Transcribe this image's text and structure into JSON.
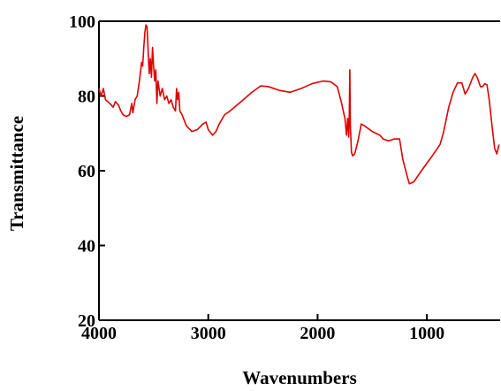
{
  "chart_data": {
    "type": "line",
    "x_label": "Wavenumbers",
    "y_label": "Transmittance",
    "color": "#e00000",
    "xlim": [
      4000,
      330
    ],
    "ylim": [
      20,
      100
    ],
    "xticks": [
      4000,
      3000,
      2000,
      1000
    ],
    "yticks": [
      20,
      40,
      60,
      80,
      100
    ],
    "x": [
      4000,
      3980,
      3960,
      3940,
      3900,
      3870,
      3850,
      3820,
      3800,
      3780,
      3750,
      3720,
      3700,
      3690,
      3670,
      3650,
      3630,
      3610,
      3600,
      3590,
      3580,
      3570,
      3560,
      3550,
      3540,
      3530,
      3520,
      3510,
      3500,
      3490,
      3480,
      3470,
      3460,
      3440,
      3420,
      3400,
      3380,
      3360,
      3340,
      3320,
      3300,
      3290,
      3280,
      3270,
      3260,
      3240,
      3200,
      3150,
      3100,
      3050,
      3020,
      3000,
      2960,
      2930,
      2900,
      2850,
      2800,
      2700,
      2600,
      2520,
      2450,
      2350,
      2250,
      2150,
      2050,
      1950,
      1880,
      1820,
      1780,
      1750,
      1735,
      1725,
      1715,
      1710,
      1705,
      1700,
      1690,
      1680,
      1660,
      1630,
      1600,
      1570,
      1500,
      1430,
      1400,
      1350,
      1300,
      1250,
      1220,
      1180,
      1160,
      1120,
      1050,
      950,
      880,
      850,
      800,
      760,
      720,
      680,
      650,
      620,
      580,
      560,
      540,
      510,
      490,
      470,
      450,
      430,
      400,
      380,
      360,
      340
    ],
    "values": [
      82,
      80,
      82,
      79,
      78,
      77,
      78.5,
      77.5,
      76,
      75,
      74.5,
      75,
      78,
      75.5,
      79,
      80,
      84,
      89,
      88,
      93,
      97,
      99,
      98.5,
      92,
      86,
      90,
      85,
      93,
      88,
      84,
      87,
      78,
      84,
      80,
      82,
      79,
      80,
      78,
      79,
      77,
      76,
      82,
      79,
      81,
      76,
      75,
      72,
      70.5,
      71,
      72.5,
      73,
      71,
      69.5,
      70.5,
      72.5,
      75,
      76,
      78.5,
      81,
      82.7,
      82.5,
      81.5,
      81,
      82,
      83.3,
      84,
      83.8,
      82.5,
      78,
      74,
      69.5,
      74,
      69,
      75,
      87,
      72,
      65,
      64,
      64.5,
      68,
      72.5,
      72,
      70.5,
      69.5,
      68.5,
      68,
      68.5,
      68.5,
      63,
      58.5,
      56.5,
      57,
      60,
      64,
      67,
      70,
      77,
      81,
      83.5,
      83.5,
      80.5,
      82,
      85,
      86,
      85,
      82.5,
      82.5,
      83.3,
      83,
      79,
      71,
      66,
      64.5,
      67
    ]
  }
}
